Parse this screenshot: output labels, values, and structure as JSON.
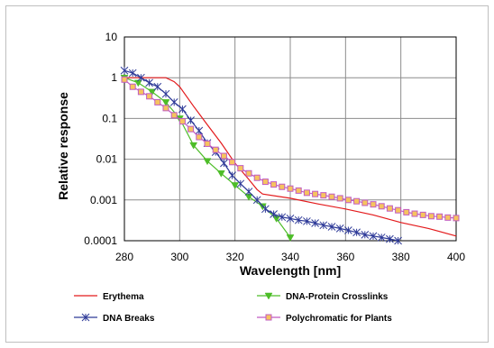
{
  "chart_data": {
    "type": "line",
    "title": "",
    "xlabel": "Wavelength [nm]",
    "ylabel": "Relative response",
    "xlim": [
      280,
      400
    ],
    "ylim": [
      0.0001,
      10
    ],
    "yscale": "log",
    "grid": true,
    "legend_position": "bottom",
    "x_ticks": [
      "280",
      "300",
      "320",
      "340",
      "360",
      "380",
      "400"
    ],
    "y_ticks": [
      "0.0001",
      "0.001",
      "0.01",
      "0.1",
      "1",
      "10"
    ],
    "series": [
      {
        "name": "Erythema",
        "color": "#e31a1c",
        "marker": "none",
        "points": [
          [
            280,
            1
          ],
          [
            290,
            1
          ],
          [
            295,
            1
          ],
          [
            298,
            0.8
          ],
          [
            300,
            0.6
          ],
          [
            305,
            0.2
          ],
          [
            310,
            0.07
          ],
          [
            315,
            0.025
          ],
          [
            320,
            0.008
          ],
          [
            325,
            0.0032
          ],
          [
            328,
            0.0018
          ],
          [
            330,
            0.0014
          ],
          [
            340,
            0.0011
          ],
          [
            350,
            0.0008
          ],
          [
            360,
            0.0006
          ],
          [
            370,
            0.00043
          ],
          [
            380,
            0.00028
          ],
          [
            390,
            0.0002
          ],
          [
            400,
            0.00013
          ]
        ]
      },
      {
        "name": "DNA-Protein Crosslinks",
        "color": "#4dbd28",
        "marker": "triangle-down",
        "points": [
          [
            280,
            1
          ],
          [
            285,
            0.75
          ],
          [
            290,
            0.45
          ],
          [
            295,
            0.25
          ],
          [
            300,
            0.1
          ],
          [
            305,
            0.022
          ],
          [
            310,
            0.009
          ],
          [
            315,
            0.0045
          ],
          [
            320,
            0.0023
          ],
          [
            325,
            0.0012
          ],
          [
            330,
            0.0007
          ],
          [
            335,
            0.00035
          ],
          [
            340,
            0.00012
          ]
        ]
      },
      {
        "name": "DNA Breaks",
        "color": "#2e3a98",
        "marker": "star",
        "points": [
          [
            280,
            1.5
          ],
          [
            283,
            1.3
          ],
          [
            286,
            1
          ],
          [
            289,
            0.75
          ],
          [
            292,
            0.6
          ],
          [
            295,
            0.4
          ],
          [
            298,
            0.25
          ],
          [
            301,
            0.17
          ],
          [
            304,
            0.09
          ],
          [
            307,
            0.05
          ],
          [
            310,
            0.025
          ],
          [
            313,
            0.015
          ],
          [
            316,
            0.008
          ],
          [
            319,
            0.004
          ],
          [
            322,
            0.0025
          ],
          [
            325,
            0.0016
          ],
          [
            328,
            0.001
          ],
          [
            331,
            0.0006
          ],
          [
            334,
            0.00045
          ],
          [
            337,
            0.00038
          ],
          [
            340,
            0.00035
          ],
          [
            343,
            0.00032
          ],
          [
            346,
            0.0003
          ],
          [
            349,
            0.00027
          ],
          [
            352,
            0.00024
          ],
          [
            355,
            0.00022
          ],
          [
            358,
            0.0002
          ],
          [
            361,
            0.00018
          ],
          [
            364,
            0.00016
          ],
          [
            367,
            0.00014
          ],
          [
            370,
            0.00013
          ],
          [
            373,
            0.00012
          ],
          [
            376,
            0.00011
          ],
          [
            379,
            0.0001
          ]
        ]
      },
      {
        "name": "Polychromatic for Plants",
        "color": "#c05bc2",
        "marker": "square",
        "marker_fill": "#f6c45e",
        "points": [
          [
            280,
            0.9
          ],
          [
            283,
            0.6
          ],
          [
            286,
            0.45
          ],
          [
            289,
            0.35
          ],
          [
            292,
            0.25
          ],
          [
            295,
            0.18
          ],
          [
            298,
            0.12
          ],
          [
            301,
            0.085
          ],
          [
            304,
            0.055
          ],
          [
            307,
            0.035
          ],
          [
            310,
            0.024
          ],
          [
            313,
            0.017
          ],
          [
            316,
            0.012
          ],
          [
            319,
            0.0085
          ],
          [
            322,
            0.006
          ],
          [
            325,
            0.0045
          ],
          [
            328,
            0.0035
          ],
          [
            331,
            0.0028
          ],
          [
            334,
            0.0024
          ],
          [
            337,
            0.0021
          ],
          [
            340,
            0.0019
          ],
          [
            343,
            0.0017
          ],
          [
            346,
            0.0015
          ],
          [
            349,
            0.0014
          ],
          [
            352,
            0.0013
          ],
          [
            355,
            0.0012
          ],
          [
            358,
            0.0011
          ],
          [
            361,
            0.001
          ],
          [
            364,
            0.00093
          ],
          [
            367,
            0.00085
          ],
          [
            370,
            0.00078
          ],
          [
            373,
            0.0007
          ],
          [
            376,
            0.00062
          ],
          [
            379,
            0.00056
          ],
          [
            382,
            0.0005
          ],
          [
            385,
            0.00046
          ],
          [
            388,
            0.00043
          ],
          [
            391,
            0.0004
          ],
          [
            394,
            0.00039
          ],
          [
            397,
            0.00037
          ],
          [
            400,
            0.00036
          ]
        ]
      }
    ],
    "legend_order": [
      "Erythema",
      "DNA-Protein Crosslinks",
      "DNA Breaks",
      "Polychromatic for Plants"
    ]
  }
}
